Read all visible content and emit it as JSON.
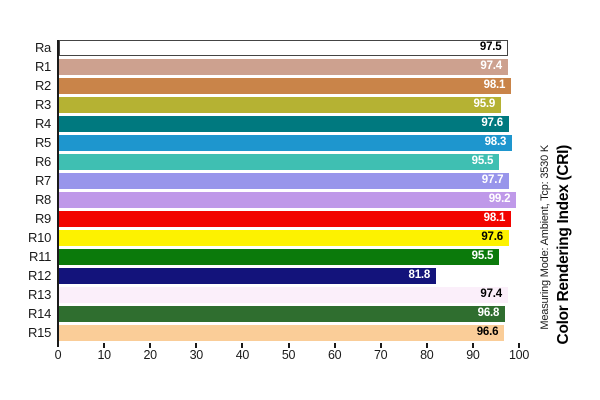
{
  "chart_data": {
    "type": "bar",
    "orientation": "horizontal",
    "title": "",
    "xlabel": "",
    "ylabel": "",
    "categories": [
      "Ra",
      "R1",
      "R2",
      "R3",
      "R4",
      "R5",
      "R6",
      "R7",
      "R8",
      "R9",
      "R10",
      "R11",
      "R12",
      "R13",
      "R14",
      "R15"
    ],
    "values": [
      97.5,
      97.4,
      98.1,
      95.9,
      97.6,
      98.3,
      95.5,
      97.7,
      99.2,
      98.1,
      97.6,
      95.5,
      81.8,
      97.4,
      96.8,
      96.6
    ],
    "bar_colors": [
      "#ffffff",
      "#cda18f",
      "#c98449",
      "#b5b233",
      "#00797f",
      "#1e96ce",
      "#3fbfb2",
      "#9895eb",
      "#bf99e9",
      "#f20400",
      "#fdf200",
      "#0b7a0b",
      "#13137b",
      "#fbeffa",
      "#2f6e2f",
      "#facd98"
    ],
    "value_text_colors": [
      "#000000",
      "#ffffff",
      "#ffffff",
      "#ffffff",
      "#ffffff",
      "#ffffff",
      "#ffffff",
      "#ffffff",
      "#ffffff",
      "#ffffff",
      "#000000",
      "#ffffff",
      "#ffffff",
      "#000000",
      "#ffffff",
      "#000000"
    ],
    "bar_border_colors": [
      "#444444",
      "none",
      "none",
      "none",
      "none",
      "none",
      "none",
      "none",
      "none",
      "none",
      "none",
      "none",
      "none",
      "none",
      "none",
      "none"
    ],
    "xlim": [
      0,
      100
    ],
    "x_ticks": [
      0,
      10,
      20,
      30,
      40,
      50,
      60,
      70,
      80,
      90,
      100
    ],
    "grid": false,
    "legend": "none",
    "axis_color": "#1a1a1a",
    "background_color": "#ffffff",
    "right_side_text": {
      "subtitle": "Measuring Mode: Ambient, Tcp: 3530 K",
      "axis_title": "Color Rendering Index (CRI)"
    }
  }
}
